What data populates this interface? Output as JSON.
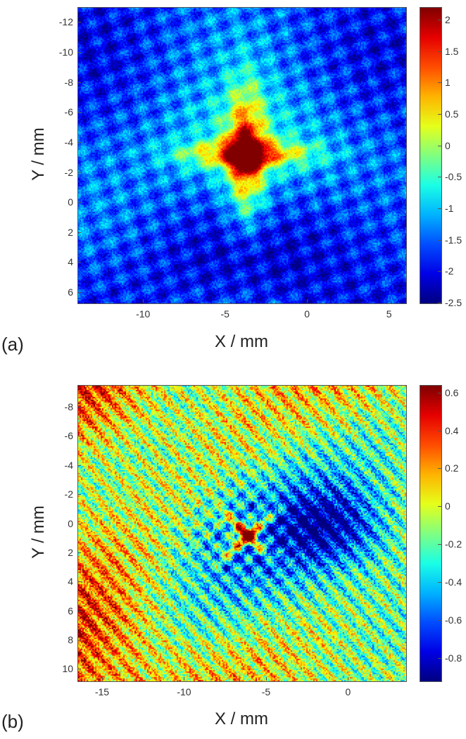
{
  "chart_data": [
    {
      "panel_label": "(a)",
      "type": "heatmap",
      "xlabel": "X / mm",
      "ylabel": "Y / mm",
      "xlim": [
        -14,
        6
      ],
      "ylim": [
        -13,
        6.7
      ],
      "y_reversed": true,
      "x_ticks": [
        "-10",
        "-5",
        "0",
        "5"
      ],
      "y_ticks": [
        "-12",
        "-10",
        "-8",
        "-6",
        "-4",
        "-2",
        "0",
        "2",
        "4",
        "6"
      ],
      "colorbar": {
        "min": -2.5,
        "max": 2.2,
        "ticks": [
          "2",
          "1.5",
          "1",
          "0.5",
          "0",
          "-0.5",
          "-1",
          "-1.5",
          "-2",
          "-2.5"
        ]
      },
      "colormap": "jet",
      "features": [
        {
          "kind": "cross",
          "center": [
            -3.8,
            -3.3
          ],
          "peak_value": 2.1
        }
      ]
    },
    {
      "panel_label": "(b)",
      "type": "heatmap",
      "xlabel": "X / mm",
      "ylabel": "Y / mm",
      "xlim": [
        -16.5,
        3.5
      ],
      "ylim": [
        -9.5,
        10.8
      ],
      "y_reversed": true,
      "x_ticks": [
        "-15",
        "-10",
        "-5",
        "0"
      ],
      "y_ticks": [
        "-8",
        "-6",
        "-4",
        "-2",
        "0",
        "2",
        "4",
        "6",
        "8",
        "10"
      ],
      "colorbar": {
        "min": -0.92,
        "max": 0.64,
        "ticks": [
          "0.6",
          "0.4",
          "0.2",
          "0",
          "-0.2",
          "-0.4",
          "-0.6",
          "-0.8"
        ]
      },
      "colormap": "jet",
      "features": [
        {
          "kind": "x-cross",
          "center": [
            -6.2,
            0.7
          ],
          "peak_value": 0.6
        },
        {
          "kind": "low-region",
          "center": [
            -1.2,
            0.2
          ],
          "min_value": -0.85
        }
      ]
    }
  ]
}
